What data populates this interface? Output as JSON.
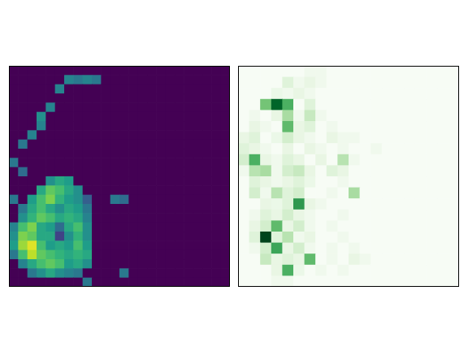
{
  "chart_data": [
    {
      "type": "heatmap",
      "color": "viridis",
      "tick_labels": false,
      "grid": false,
      "xlim": [
        0,
        24
      ],
      "ylim": [
        24,
        0
      ],
      "color_range": [
        0,
        1
      ],
      "cells": [
        [
          0,
          0,
          0,
          0,
          0,
          0,
          0,
          0,
          0,
          0,
          0,
          0,
          0,
          0,
          0,
          0,
          0,
          0,
          0,
          0,
          0,
          0,
          0,
          0
        ],
        [
          0,
          0,
          0,
          0,
          0,
          0,
          0.45,
          0.4,
          0.45,
          0.4,
          0,
          0,
          0,
          0,
          0,
          0,
          0,
          0,
          0,
          0,
          0,
          0,
          0,
          0
        ],
        [
          0,
          0,
          0,
          0,
          0,
          0.45,
          0,
          0,
          0,
          0,
          0,
          0,
          0,
          0,
          0,
          0,
          0,
          0,
          0,
          0,
          0,
          0,
          0,
          0
        ],
        [
          0,
          0,
          0,
          0,
          0,
          0,
          0,
          0,
          0,
          0,
          0,
          0,
          0,
          0,
          0,
          0,
          0,
          0,
          0,
          0,
          0,
          0,
          0,
          0
        ],
        [
          0,
          0,
          0,
          0,
          0.45,
          0,
          0,
          0,
          0,
          0,
          0,
          0,
          0,
          0,
          0,
          0,
          0,
          0,
          0,
          0,
          0,
          0,
          0,
          0
        ],
        [
          0,
          0,
          0,
          0.5,
          0,
          0,
          0,
          0,
          0,
          0,
          0,
          0,
          0,
          0,
          0,
          0,
          0,
          0,
          0,
          0,
          0,
          0,
          0,
          0
        ],
        [
          0,
          0,
          0,
          0.45,
          0,
          0,
          0,
          0,
          0,
          0,
          0,
          0,
          0,
          0,
          0,
          0,
          0,
          0,
          0,
          0,
          0,
          0,
          0,
          0
        ],
        [
          0,
          0,
          0.45,
          0,
          0,
          0,
          0,
          0,
          0,
          0,
          0,
          0,
          0,
          0,
          0,
          0,
          0,
          0,
          0,
          0,
          0,
          0,
          0,
          0
        ],
        [
          0,
          0.4,
          0,
          0,
          0,
          0,
          0,
          0,
          0,
          0,
          0,
          0,
          0,
          0,
          0,
          0,
          0,
          0,
          0,
          0,
          0,
          0,
          0,
          0
        ],
        [
          0,
          0,
          0,
          0,
          0,
          0,
          0,
          0,
          0,
          0,
          0,
          0,
          0,
          0,
          0,
          0,
          0,
          0,
          0,
          0,
          0,
          0,
          0,
          0
        ],
        [
          0.4,
          0,
          0,
          0,
          0,
          0,
          0,
          0,
          0,
          0,
          0,
          0,
          0,
          0,
          0,
          0,
          0,
          0,
          0,
          0,
          0,
          0,
          0,
          0
        ],
        [
          0,
          0.35,
          0,
          0,
          0,
          0,
          0,
          0,
          0,
          0,
          0,
          0,
          0,
          0,
          0,
          0,
          0,
          0,
          0,
          0,
          0,
          0,
          0,
          0
        ],
        [
          0,
          0,
          0,
          0,
          0.5,
          0.6,
          0.55,
          0,
          0,
          0,
          0,
          0,
          0,
          0,
          0,
          0,
          0,
          0,
          0,
          0,
          0,
          0,
          0,
          0
        ],
        [
          0,
          0,
          0,
          0.6,
          0.75,
          0.7,
          0.6,
          0.5,
          0,
          0,
          0,
          0,
          0,
          0,
          0,
          0,
          0,
          0,
          0,
          0,
          0,
          0,
          0,
          0
        ],
        [
          0.4,
          0,
          0.55,
          0.7,
          0.8,
          0.65,
          0.55,
          0.5,
          0.3,
          0,
          0,
          0.4,
          0.35,
          0,
          0,
          0,
          0,
          0,
          0,
          0,
          0,
          0,
          0,
          0
        ],
        [
          0,
          0.4,
          0.6,
          0.7,
          0.6,
          0.5,
          0.6,
          0.55,
          0.4,
          0,
          0,
          0,
          0,
          0,
          0,
          0,
          0,
          0,
          0,
          0,
          0,
          0,
          0,
          0
        ],
        [
          0,
          0.5,
          0.65,
          0.75,
          0.7,
          0.6,
          0.65,
          0.6,
          0.45,
          0,
          0,
          0,
          0,
          0,
          0,
          0,
          0,
          0,
          0,
          0,
          0,
          0,
          0,
          0
        ],
        [
          0.45,
          0.7,
          0.8,
          0.6,
          0.55,
          0.35,
          0.6,
          0.7,
          0.5,
          0,
          0,
          0,
          0,
          0,
          0,
          0,
          0,
          0,
          0,
          0,
          0,
          0,
          0,
          0
        ],
        [
          0.5,
          0.8,
          0.75,
          0.6,
          0.6,
          0.2,
          0.5,
          0.65,
          0.5,
          0,
          0,
          0,
          0,
          0,
          0,
          0,
          0,
          0,
          0,
          0,
          0,
          0,
          0,
          0
        ],
        [
          0.55,
          0.85,
          0.95,
          0.7,
          0.55,
          0.6,
          0.55,
          0.7,
          0.55,
          0,
          0,
          0,
          0,
          0,
          0,
          0,
          0,
          0,
          0,
          0,
          0,
          0,
          0,
          0
        ],
        [
          0.4,
          0.7,
          0.9,
          0.75,
          0.7,
          0.65,
          0.6,
          0.65,
          0.6,
          0,
          0,
          0,
          0,
          0,
          0,
          0,
          0,
          0,
          0,
          0,
          0,
          0,
          0,
          0
        ],
        [
          0,
          0.45,
          0.6,
          0.7,
          0.75,
          0.7,
          0.55,
          0.6,
          0.5,
          0,
          0,
          0,
          0,
          0,
          0,
          0,
          0,
          0,
          0,
          0,
          0,
          0,
          0,
          0
        ],
        [
          0,
          0,
          0.4,
          0.5,
          0.6,
          0.5,
          0.45,
          0.4,
          0,
          0,
          0,
          0,
          0.4,
          0,
          0,
          0,
          0,
          0,
          0,
          0,
          0,
          0,
          0,
          0
        ],
        [
          0,
          0,
          0,
          0,
          0,
          0,
          0,
          0,
          0.4,
          0,
          0,
          0,
          0,
          0,
          0,
          0,
          0,
          0,
          0,
          0,
          0,
          0,
          0,
          0
        ]
      ]
    },
    {
      "type": "heatmap",
      "color": "Greens",
      "tick_labels": false,
      "grid": false,
      "xlim": [
        0,
        20
      ],
      "ylim": [
        20,
        0
      ],
      "color_range": [
        0,
        1
      ],
      "cells": [
        [
          0,
          0,
          0,
          0,
          0,
          0,
          0.05,
          0.05,
          0,
          0,
          0,
          0,
          0,
          0,
          0,
          0,
          0,
          0,
          0,
          0
        ],
        [
          0,
          0,
          0,
          0,
          0.15,
          0.05,
          0.1,
          0.05,
          0,
          0,
          0,
          0,
          0,
          0,
          0,
          0,
          0,
          0,
          0,
          0
        ],
        [
          0,
          0,
          0,
          0.08,
          0.05,
          0.1,
          0.05,
          0,
          0,
          0,
          0,
          0,
          0,
          0,
          0,
          0,
          0,
          0,
          0,
          0
        ],
        [
          0,
          0,
          0.5,
          0.9,
          0.6,
          0,
          0.15,
          0,
          0,
          0,
          0,
          0,
          0,
          0,
          0,
          0,
          0,
          0,
          0,
          0
        ],
        [
          0,
          0.05,
          0,
          0.1,
          0.35,
          0.05,
          0.25,
          0.05,
          0,
          0,
          0,
          0,
          0,
          0,
          0,
          0,
          0,
          0,
          0,
          0
        ],
        [
          0,
          0.1,
          0.05,
          0,
          0.55,
          0.1,
          0.15,
          0,
          0.05,
          0,
          0,
          0,
          0,
          0,
          0,
          0,
          0,
          0,
          0,
          0
        ],
        [
          0.1,
          0.15,
          0,
          0.08,
          0.2,
          0.1,
          0.05,
          0,
          0.1,
          0.05,
          0.05,
          0,
          0,
          0,
          0,
          0,
          0,
          0,
          0,
          0
        ],
        [
          0.15,
          0.1,
          0.05,
          0,
          0.1,
          0,
          0.1,
          0.05,
          0,
          0.05,
          0,
          0,
          0.05,
          0,
          0,
          0,
          0,
          0,
          0,
          0
        ],
        [
          0.2,
          0.6,
          0.1,
          0.05,
          0.15,
          0.1,
          0,
          0.1,
          0,
          0.3,
          0.05,
          0,
          0,
          0,
          0,
          0,
          0,
          0,
          0,
          0
        ],
        [
          0.05,
          0.3,
          0.35,
          0.05,
          0.2,
          0.25,
          0.1,
          0,
          0.15,
          0.1,
          0,
          0,
          0,
          0,
          0,
          0,
          0,
          0,
          0,
          0
        ],
        [
          0,
          0.15,
          0.1,
          0.05,
          0.1,
          0.15,
          0.08,
          0,
          0,
          0.05,
          0,
          0,
          0,
          0,
          0,
          0,
          0,
          0,
          0,
          0
        ],
        [
          0,
          0.2,
          0.05,
          0.3,
          0.15,
          0.2,
          0,
          0,
          0.05,
          0,
          0.35,
          0,
          0,
          0,
          0,
          0,
          0,
          0,
          0,
          0
        ],
        [
          0,
          0,
          0.1,
          0.08,
          0.15,
          0.7,
          0.1,
          0.05,
          0,
          0,
          0,
          0,
          0,
          0,
          0,
          0,
          0,
          0,
          0,
          0
        ],
        [
          0,
          0.05,
          0.15,
          0.1,
          0.2,
          0.1,
          0.05,
          0,
          0,
          0.05,
          0,
          0,
          0,
          0,
          0,
          0,
          0,
          0,
          0,
          0
        ],
        [
          0,
          0.1,
          0.2,
          0.55,
          0.1,
          0.2,
          0.05,
          0,
          0.05,
          0,
          0,
          0,
          0,
          0,
          0,
          0,
          0,
          0,
          0,
          0
        ],
        [
          0,
          0.15,
          1.0,
          0.15,
          0.3,
          0.05,
          0.1,
          0,
          0,
          0.05,
          0,
          0,
          0,
          0,
          0,
          0,
          0,
          0,
          0,
          0
        ],
        [
          0,
          0.05,
          0.2,
          0.65,
          0.1,
          0.2,
          0.05,
          0,
          0.05,
          0,
          0.05,
          0,
          0,
          0,
          0,
          0,
          0,
          0,
          0,
          0
        ],
        [
          0,
          0,
          0.25,
          0.1,
          0.15,
          0.1,
          0.55,
          0,
          0.05,
          0,
          0.1,
          0.05,
          0,
          0,
          0,
          0,
          0,
          0,
          0,
          0
        ],
        [
          0,
          0,
          0,
          0.1,
          0.6,
          0.08,
          0,
          0.05,
          0,
          0.05,
          0,
          0,
          0,
          0,
          0,
          0,
          0,
          0,
          0,
          0
        ],
        [
          0,
          0,
          0,
          0.05,
          0.05,
          0,
          0,
          0,
          0,
          0,
          0,
          0,
          0,
          0,
          0,
          0,
          0,
          0,
          0,
          0
        ]
      ]
    }
  ]
}
